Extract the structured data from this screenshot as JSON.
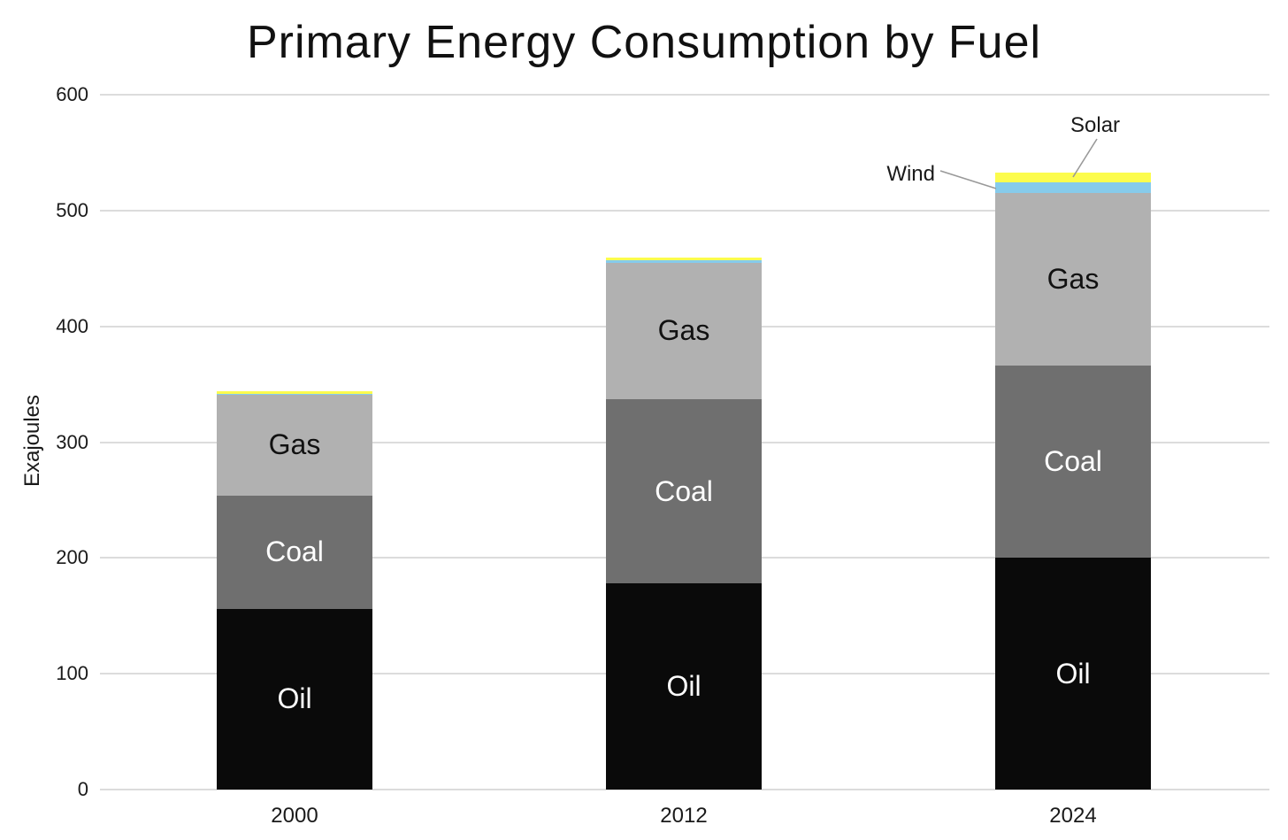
{
  "chart_data": {
    "type": "bar",
    "stacked": true,
    "title": "Primary Energy Consumption by Fuel",
    "xlabel": "",
    "ylabel": "Exajoules",
    "categories": [
      "2000",
      "2012",
      "2024"
    ],
    "series": [
      {
        "name": "Oil",
        "color": "#0a0a0a",
        "label_color": "#ffffff",
        "in_bar_label": true,
        "values": [
          156,
          178,
          200
        ]
      },
      {
        "name": "Coal",
        "color": "#6f6f6f",
        "label_color": "#ffffff",
        "in_bar_label": true,
        "values": [
          98,
          159,
          166
        ]
      },
      {
        "name": "Gas",
        "color": "#b1b1b1",
        "label_color": "#111111",
        "in_bar_label": true,
        "values": [
          87,
          118,
          149
        ]
      },
      {
        "name": "Wind",
        "color": "#86cbeb",
        "label_color": "#111111",
        "in_bar_label": false,
        "values": [
          1,
          2,
          9
        ]
      },
      {
        "name": "Solar",
        "color": "#fcfc4d",
        "label_color": "#111111",
        "in_bar_label": false,
        "values": [
          2,
          2,
          9
        ]
      }
    ],
    "ylim": [
      0,
      600
    ],
    "yticks": [
      0,
      100,
      200,
      300,
      400,
      500,
      600
    ],
    "grid": true,
    "legend": "none",
    "annotations": [
      {
        "text": "Wind",
        "target_series": "Wind",
        "target_category": "2024"
      },
      {
        "text": "Solar",
        "target_series": "Solar",
        "target_category": "2024"
      }
    ],
    "leader_line_color": "#999999",
    "gridline_color": "#dcdcdc"
  }
}
